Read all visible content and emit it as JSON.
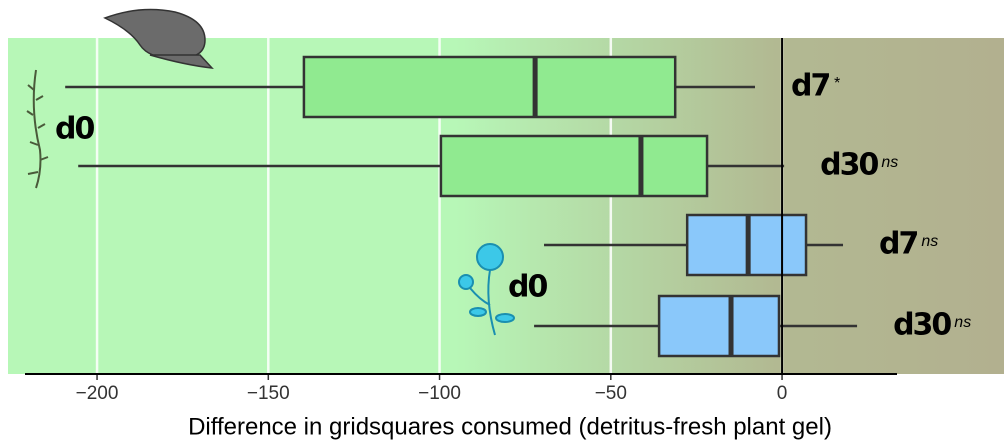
{
  "chart_data": {
    "type": "boxplot",
    "xlabel": "Difference in gridsquares consumed (detritus-fresh plant gel)",
    "xlim": [
      -226,
      64.8
    ],
    "xticks": [
      {
        "value": -200,
        "label": "−200"
      },
      {
        "value": -150,
        "label": "−150"
      },
      {
        "value": -100,
        "label": "−100"
      },
      {
        "value": -50,
        "label": "−50"
      },
      0
    ],
    "grid": true,
    "groups": [
      {
        "label": "d0",
        "color": "#90ea90",
        "boxes": [
          {
            "label": "d7",
            "significance": "*",
            "min": -209.3,
            "q1": -139.6,
            "median": -72.1,
            "q3": -31.2,
            "max": -7.9
          },
          {
            "label": "d30",
            "significance": "ns",
            "min": -205.5,
            "q1": -99.6,
            "median": -41.2,
            "q3": -21.9,
            "max": 0.6
          }
        ]
      },
      {
        "label": "d0",
        "color": "#8ac8fa",
        "boxes": [
          {
            "label": "d7",
            "significance": "ns",
            "min": -69.5,
            "q1": -27.7,
            "median": -9.9,
            "q3": 7.0,
            "max": 17.8
          },
          {
            "label": "d30",
            "significance": "ns",
            "min": -72.4,
            "q1": -35.9,
            "median": -14.9,
            "q3": -0.9,
            "max": 21.9
          }
        ]
      }
    ]
  }
}
